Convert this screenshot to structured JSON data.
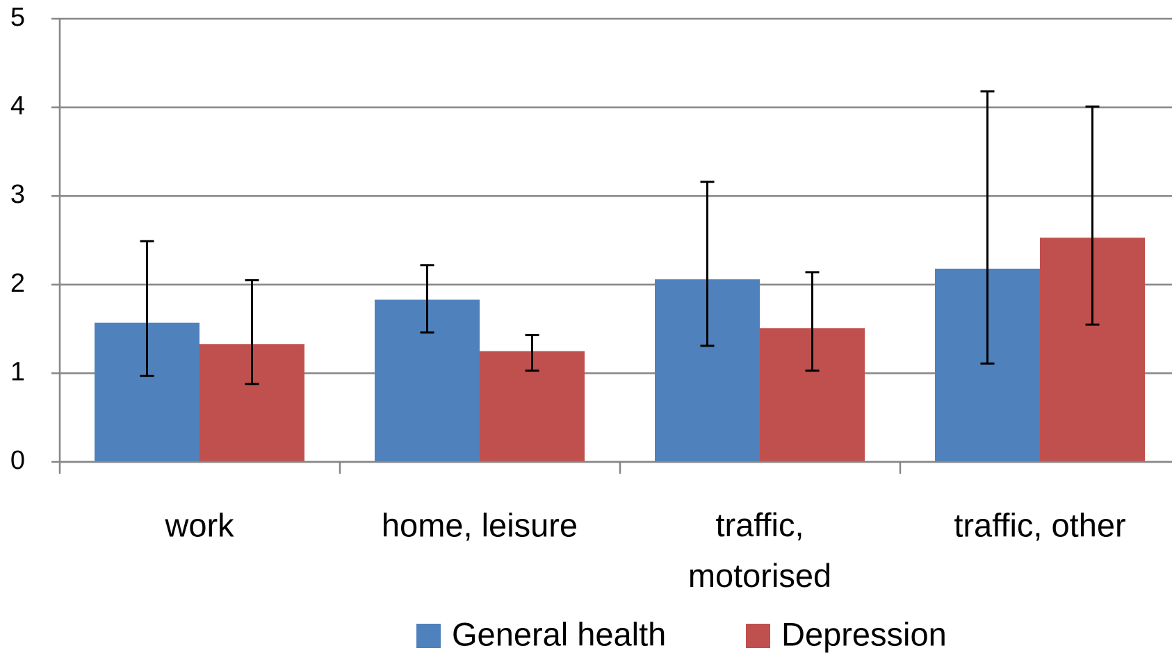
{
  "chart_data": {
    "type": "bar",
    "categories": [
      "work",
      "home, leisure",
      "traffic, motorised",
      "traffic, other"
    ],
    "series": [
      {
        "name": "General health",
        "color": "#4f81bd",
        "values": [
          1.57,
          1.83,
          2.06,
          2.18
        ],
        "ci_low": [
          0.97,
          1.46,
          1.31,
          1.11
        ],
        "ci_high": [
          2.49,
          2.22,
          3.16,
          4.18
        ]
      },
      {
        "name": "Depression",
        "color": "#c0504d",
        "values": [
          1.33,
          1.25,
          1.51,
          2.53
        ],
        "ci_low": [
          0.88,
          1.03,
          1.03,
          1.55
        ],
        "ci_high": [
          2.05,
          1.43,
          2.14,
          4.01
        ]
      }
    ],
    "ylim": [
      0,
      5
    ],
    "yticks": [
      0,
      1,
      2,
      3,
      4,
      5
    ],
    "grid": true,
    "legend": "bottom"
  }
}
